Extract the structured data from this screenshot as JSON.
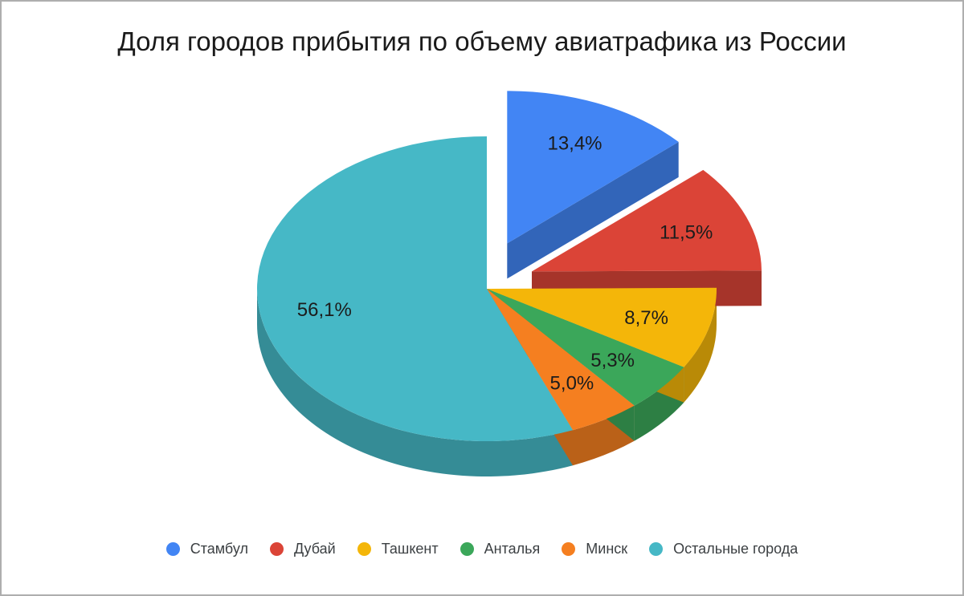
{
  "chart_data": {
    "type": "pie",
    "style": "3d-exploded",
    "title": "Доля городов прибытия по объему авиатрафика из России",
    "categories": [
      "Стамбул",
      "Дубай",
      "Ташкент",
      "Анталья",
      "Минск",
      "Остальные города"
    ],
    "values": [
      13.4,
      11.5,
      8.7,
      5.3,
      5.0,
      56.1
    ],
    "value_labels": [
      "13,4%",
      "11,5%",
      "8,7%",
      "5,3%",
      "5,0%",
      "56,1%"
    ],
    "colors": [
      "#4285F4",
      "#DB4437",
      "#F4B609",
      "#3BA75A",
      "#F57F20",
      "#46B8C6"
    ],
    "exploded_slices": [
      "Стамбул",
      "Дубай"
    ],
    "explode_distance": [
      62,
      60,
      0,
      0,
      0,
      0
    ],
    "start_angle_deg": 0,
    "direction": "clockwise",
    "number_format": "decimal-comma",
    "legend_position": "bottom",
    "background": "#ffffff"
  }
}
